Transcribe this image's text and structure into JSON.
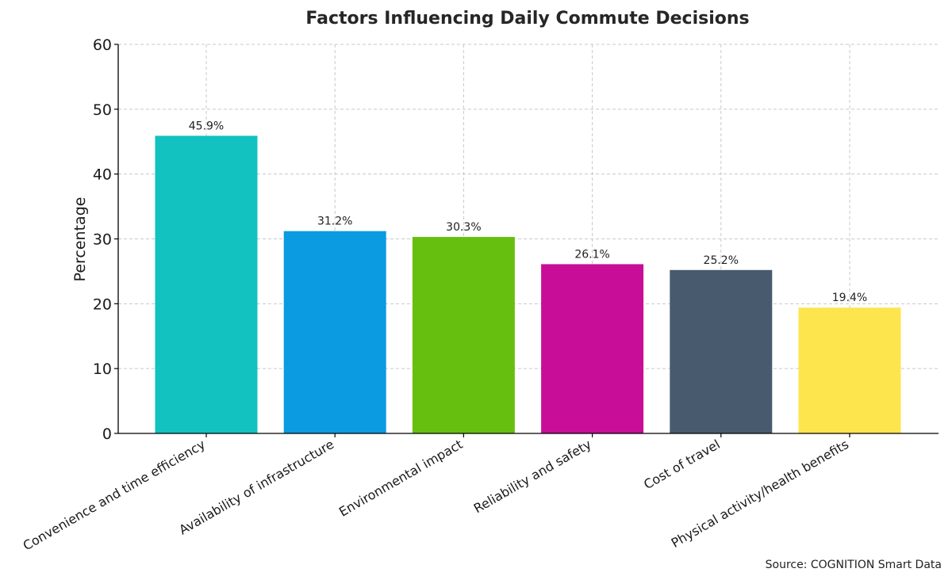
{
  "chart_data": {
    "type": "bar",
    "title": "Factors Influencing Daily Commute Decisions",
    "xlabel": "",
    "ylabel": "Percentage",
    "categories": [
      "Convenience and time efficiency",
      "Availability of infrastructure",
      "Environmental impact",
      "Reliability and safety",
      "Cost of travel",
      "Physical activity/health benefits"
    ],
    "values": [
      45.9,
      31.2,
      30.3,
      26.1,
      25.2,
      19.4
    ],
    "value_labels": [
      "45.9%",
      "31.2%",
      "30.3%",
      "26.1%",
      "25.2%",
      "19.4%"
    ],
    "colors": [
      "#11c2c0",
      "#0a9be0",
      "#66bf0f",
      "#c80d98",
      "#485b6e",
      "#fde54d"
    ],
    "ylim": [
      0,
      60
    ],
    "yticks": [
      "0",
      "10",
      "20",
      "30",
      "40",
      "50",
      "60"
    ],
    "grid": true,
    "legend": "none"
  },
  "source": "Source: COGNITION Smart Data"
}
